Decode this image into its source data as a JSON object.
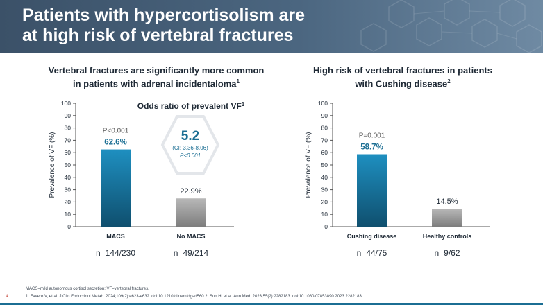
{
  "slide": {
    "title_line1": "Patients with hypercortisolism are",
    "title_line2": "at high risk of vertebral fractures",
    "page_number": "4",
    "footnote_abbrev": "MACS=mild autonomous cortisol secretion; VF=vertebral fractures.",
    "footnote_refs": "1. Favero V, et al. J Clin Endocrinol Metab. 2024;109(2):e623-e632. doi:10.1210/clinem/dgad560 2. Sun H, et al. Ann Med. 2023;55(2):2282183. doi:10.1080/07853890.2023.2282183"
  },
  "left_panel": {
    "subtitle_line1": "Vertebral fractures are significantly more common",
    "subtitle_line2": "in patients with adrenal incidentaloma",
    "subtitle_ref": "1",
    "odds_title": "Odds ratio of prevalent VF",
    "odds_ref": "1",
    "odds_value": "5.2",
    "odds_ci": "(CI: 3.36-8.06)",
    "odds_p": "P<0.001"
  },
  "right_panel": {
    "subtitle_line1": "High risk of vertebral fractures in patients",
    "subtitle_line2": "with Cushing disease",
    "subtitle_ref": "2"
  },
  "chart_data": [
    {
      "type": "bar",
      "ylabel": "Prevalence of VF (%)",
      "ylim": [
        0,
        100
      ],
      "yticks": [
        0,
        10,
        20,
        30,
        40,
        50,
        60,
        70,
        80,
        90,
        100
      ],
      "categories": [
        "MACS",
        "No MACS"
      ],
      "values": [
        62.6,
        22.9
      ],
      "value_labels": [
        "62.6%",
        "22.9%"
      ],
      "n_labels": [
        "n=144/230",
        "n=49/214"
      ],
      "p_value": "P<0.001",
      "colors": [
        "#1a7fae",
        "#9d9d9d"
      ]
    },
    {
      "type": "bar",
      "ylabel": "Prevalence of VF (%)",
      "ylim": [
        0,
        100
      ],
      "yticks": [
        0,
        10,
        20,
        30,
        40,
        50,
        60,
        70,
        80,
        90,
        100
      ],
      "categories": [
        "Cushing disease",
        "Healthy controls"
      ],
      "values": [
        58.7,
        14.5
      ],
      "value_labels": [
        "58.7%",
        "14.5%"
      ],
      "n_labels": [
        "n=44/75",
        "n=9/62"
      ],
      "p_value": "P=0.001",
      "colors": [
        "#1a7fae",
        "#9d9d9d"
      ]
    }
  ]
}
